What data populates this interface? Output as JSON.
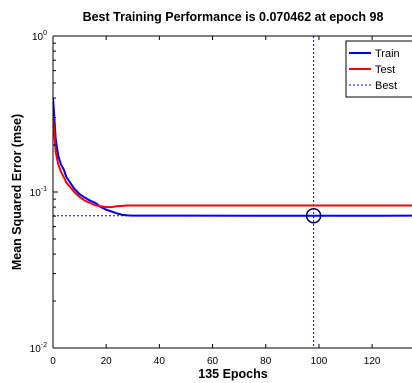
{
  "chart_data": {
    "type": "line",
    "title": "Best Training Performance is 0.070462 at epoch 98",
    "xlabel": "135 Epochs",
    "ylabel": "Mean Squared Error  (mse)",
    "xlim": [
      0,
      135
    ],
    "ylim": [
      0.01,
      1
    ],
    "yscale": "log",
    "x_ticks": [
      0,
      20,
      40,
      60,
      80,
      100,
      120
    ],
    "x_tick_labels": [
      "0",
      "20",
      "40",
      "60",
      "80",
      "100",
      "120"
    ],
    "y_tick_labels": [
      {
        "base": "10",
        "exp": "0",
        "value": 1
      },
      {
        "base": "10",
        "exp": "-1",
        "value": 0.1
      },
      {
        "base": "10",
        "exp": "-2",
        "value": 0.01
      }
    ],
    "grid": false,
    "legend_position": "top-right",
    "series": [
      {
        "name": "Train",
        "color": "#0000ff",
        "style": "solid",
        "points": [
          [
            0,
            0.4
          ],
          [
            0.5,
            0.3
          ],
          [
            1,
            0.22
          ],
          [
            2,
            0.17
          ],
          [
            3,
            0.15
          ],
          [
            4,
            0.14
          ],
          [
            5,
            0.125
          ],
          [
            6,
            0.118
          ],
          [
            8,
            0.105
          ],
          [
            10,
            0.097
          ],
          [
            12,
            0.092
          ],
          [
            14,
            0.088
          ],
          [
            16,
            0.085
          ],
          [
            18,
            0.08
          ],
          [
            20,
            0.077
          ],
          [
            22,
            0.075
          ],
          [
            24,
            0.073
          ],
          [
            26,
            0.0715
          ],
          [
            28,
            0.0708
          ],
          [
            30,
            0.0706
          ],
          [
            50,
            0.0705
          ],
          [
            98,
            0.070462
          ],
          [
            135,
            0.0705
          ]
        ]
      },
      {
        "name": "Test",
        "color": "#ff0000",
        "style": "solid",
        "points": [
          [
            0,
            0.3
          ],
          [
            0.5,
            0.24
          ],
          [
            1,
            0.18
          ],
          [
            2,
            0.15
          ],
          [
            3,
            0.135
          ],
          [
            4,
            0.125
          ],
          [
            5,
            0.115
          ],
          [
            6,
            0.11
          ],
          [
            8,
            0.1
          ],
          [
            10,
            0.093
          ],
          [
            12,
            0.088
          ],
          [
            14,
            0.085
          ],
          [
            16,
            0.082
          ],
          [
            18,
            0.081
          ],
          [
            20,
            0.08
          ],
          [
            22,
            0.08
          ],
          [
            24,
            0.081
          ],
          [
            26,
            0.0815
          ],
          [
            28,
            0.082
          ],
          [
            40,
            0.082
          ],
          [
            60,
            0.082
          ],
          [
            80,
            0.082
          ],
          [
            98,
            0.082
          ],
          [
            135,
            0.082
          ]
        ]
      },
      {
        "name": "Best",
        "color": "#0000ff",
        "style": "dotted",
        "points": [
          [
            0,
            0.070462
          ],
          [
            135,
            0.070462
          ]
        ]
      }
    ],
    "best_marker": {
      "x": 98,
      "y": 0.070462,
      "vline_color": "#0000ff"
    },
    "legend": [
      {
        "label": "Train",
        "color": "#0000ff",
        "style": "solid"
      },
      {
        "label": "Test",
        "color": "#ff0000",
        "style": "solid"
      },
      {
        "label": "Best",
        "color": "#0000ff",
        "style": "dotted"
      }
    ]
  }
}
